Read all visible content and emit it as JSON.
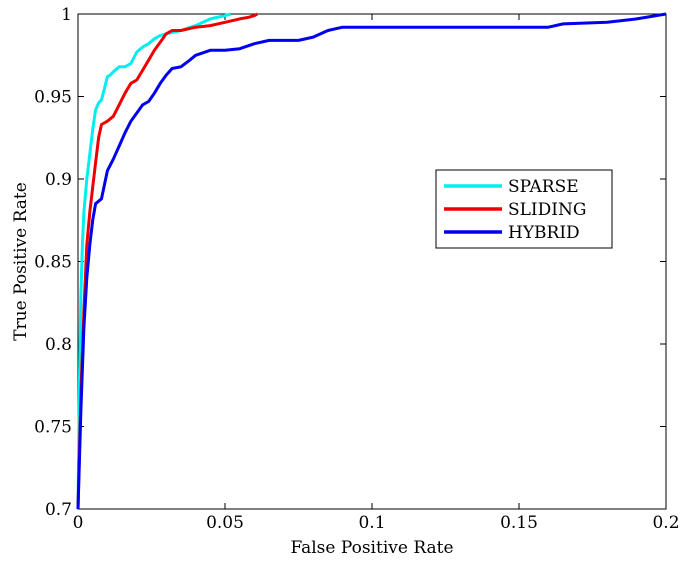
{
  "chart_data": {
    "type": "line",
    "title": "",
    "xlabel": "False Positive Rate",
    "ylabel": "True Positive Rate",
    "xlim": [
      0,
      0.2
    ],
    "ylim": [
      0.7,
      1
    ],
    "xticks": [
      "0",
      "0.05",
      "0.1",
      "0.15",
      "0.2"
    ],
    "yticks": [
      "0.7",
      "0.75",
      "0.8",
      "0.85",
      "0.9",
      "0.95",
      "1"
    ],
    "grid": false,
    "legend_position": "right",
    "series": [
      {
        "name": "SPARSE",
        "color": "#00eeee",
        "x": [
          0,
          0.0005,
          0.001,
          0.0015,
          0.002,
          0.003,
          0.004,
          0.005,
          0.006,
          0.007,
          0.008,
          0.009,
          0.01,
          0.011,
          0.012,
          0.014,
          0.016,
          0.018,
          0.02,
          0.022,
          0.024,
          0.026,
          0.028,
          0.03,
          0.035,
          0.04,
          0.045,
          0.05,
          0.052
        ],
        "y": [
          0.7,
          0.78,
          0.83,
          0.86,
          0.88,
          0.9,
          0.915,
          0.93,
          0.942,
          0.946,
          0.948,
          0.955,
          0.962,
          0.963,
          0.965,
          0.968,
          0.968,
          0.97,
          0.977,
          0.98,
          0.982,
          0.985,
          0.987,
          0.988,
          0.99,
          0.993,
          0.997,
          0.999,
          1.0
        ]
      },
      {
        "name": "SLIDING",
        "color": "#ee0000",
        "x": [
          0,
          0.001,
          0.002,
          0.003,
          0.004,
          0.005,
          0.006,
          0.007,
          0.008,
          0.01,
          0.012,
          0.014,
          0.016,
          0.018,
          0.02,
          0.022,
          0.024,
          0.026,
          0.028,
          0.03,
          0.032,
          0.035,
          0.04,
          0.045,
          0.05,
          0.055,
          0.058,
          0.06,
          0.061
        ],
        "y": [
          0.7,
          0.77,
          0.82,
          0.86,
          0.88,
          0.895,
          0.91,
          0.925,
          0.933,
          0.935,
          0.938,
          0.945,
          0.952,
          0.958,
          0.96,
          0.966,
          0.972,
          0.978,
          0.983,
          0.988,
          0.99,
          0.99,
          0.992,
          0.993,
          0.995,
          0.997,
          0.998,
          0.999,
          1.0
        ]
      },
      {
        "name": "HYBRID",
        "color": "#0000ee",
        "x": [
          0,
          0.001,
          0.002,
          0.003,
          0.004,
          0.005,
          0.006,
          0.008,
          0.01,
          0.012,
          0.014,
          0.016,
          0.018,
          0.02,
          0.022,
          0.024,
          0.026,
          0.028,
          0.03,
          0.032,
          0.035,
          0.038,
          0.04,
          0.045,
          0.05,
          0.055,
          0.06,
          0.065,
          0.07,
          0.075,
          0.08,
          0.085,
          0.09,
          0.1,
          0.12,
          0.14,
          0.16,
          0.165,
          0.18,
          0.19,
          0.2
        ],
        "y": [
          0.7,
          0.76,
          0.81,
          0.84,
          0.86,
          0.875,
          0.885,
          0.888,
          0.905,
          0.912,
          0.92,
          0.928,
          0.935,
          0.94,
          0.945,
          0.947,
          0.952,
          0.958,
          0.963,
          0.967,
          0.968,
          0.972,
          0.975,
          0.978,
          0.978,
          0.979,
          0.982,
          0.984,
          0.984,
          0.984,
          0.986,
          0.99,
          0.992,
          0.992,
          0.992,
          0.992,
          0.992,
          0.994,
          0.995,
          0.997,
          1.0
        ]
      }
    ]
  }
}
